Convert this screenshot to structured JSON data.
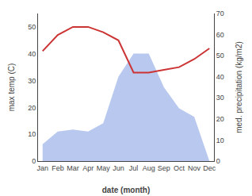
{
  "chart_data": {
    "type": "line",
    "categories": [
      "Jan",
      "Feb",
      "Mar",
      "Apr",
      "May",
      "Jun",
      "Jul",
      "Aug",
      "Sep",
      "Oct",
      "Nov",
      "Dec"
    ],
    "series": [
      {
        "type": "area",
        "color": "#b8c8ee",
        "axis": "y2",
        "values": [
          8,
          14,
          15,
          14,
          18,
          40,
          51,
          51,
          35,
          25,
          21,
          0
        ]
      },
      {
        "type": "line",
        "color": "#cc3333",
        "values": [
          41,
          47,
          50,
          50,
          48,
          45,
          33,
          33,
          34,
          35,
          38,
          42
        ]
      }
    ],
    "xlabel": "date (month)",
    "ylabel": "max temp (C)",
    "y2label": "med. precipitation (kg/m2)",
    "ylim": [
      0,
      55
    ],
    "yticks": [
      0,
      10,
      20,
      30,
      40,
      50
    ],
    "y2lim": [
      0,
      70
    ],
    "y2ticks": [
      0,
      10,
      20,
      30,
      40,
      50,
      60,
      70
    ],
    "grid": false
  }
}
